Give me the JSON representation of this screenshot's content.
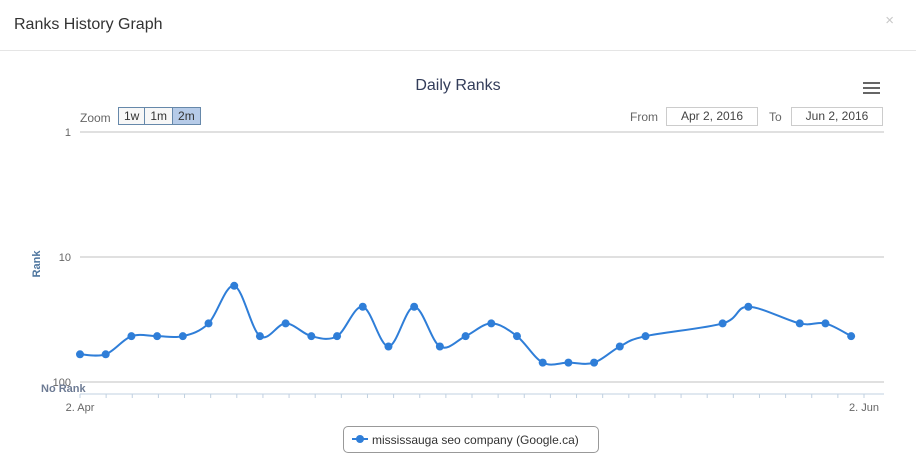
{
  "modal": {
    "title": "Ranks History Graph",
    "close_symbol": "×"
  },
  "chart_toolbar": {
    "zoom_label": "Zoom",
    "zoom_buttons": [
      "1w",
      "1m",
      "2m"
    ],
    "zoom_active": "2m",
    "from_label": "From",
    "from_value": "Apr 2, 2016",
    "to_label": "To",
    "to_value": "Jun 2, 2016",
    "menu_icon": "hamburger-menu-icon"
  },
  "chart_data": {
    "type": "line",
    "title": "Daily Ranks",
    "ylabel": "Rank",
    "xlabel": "",
    "y_scale": "log",
    "y_reversed": true,
    "ylim": [
      1,
      100
    ],
    "y_ticks": [
      {
        "value": 1,
        "label": "1"
      },
      {
        "value": 10,
        "label": "10"
      },
      {
        "value": 100,
        "label": "100"
      }
    ],
    "no_rank_label": "No Rank",
    "x_ticks": [
      {
        "date": "2016-04-02",
        "label": "2. Apr"
      },
      {
        "date": "2016-06-02",
        "label": "2. Jun"
      }
    ],
    "grid": true,
    "legend_position": "bottom-center",
    "series": [
      {
        "name": "mississauga seo company (Google.ca)",
        "color": "#2f7ed8",
        "points": [
          {
            "date": "2016-04-02",
            "rank": 60
          },
          {
            "date": "2016-04-04",
            "rank": 60
          },
          {
            "date": "2016-04-06",
            "rank": 43
          },
          {
            "date": "2016-04-08",
            "rank": 43
          },
          {
            "date": "2016-04-10",
            "rank": 43
          },
          {
            "date": "2016-04-12",
            "rank": 34
          },
          {
            "date": "2016-04-14",
            "rank": 17
          },
          {
            "date": "2016-04-16",
            "rank": 43
          },
          {
            "date": "2016-04-18",
            "rank": 34
          },
          {
            "date": "2016-04-20",
            "rank": 43
          },
          {
            "date": "2016-04-22",
            "rank": 43
          },
          {
            "date": "2016-04-24",
            "rank": 25
          },
          {
            "date": "2016-04-26",
            "rank": 52
          },
          {
            "date": "2016-04-28",
            "rank": 25
          },
          {
            "date": "2016-04-30",
            "rank": 52
          },
          {
            "date": "2016-05-02",
            "rank": 43
          },
          {
            "date": "2016-05-04",
            "rank": 34
          },
          {
            "date": "2016-05-06",
            "rank": 43
          },
          {
            "date": "2016-05-08",
            "rank": 70
          },
          {
            "date": "2016-05-10",
            "rank": 70
          },
          {
            "date": "2016-05-12",
            "rank": 70
          },
          {
            "date": "2016-05-14",
            "rank": 52
          },
          {
            "date": "2016-05-16",
            "rank": 43
          },
          {
            "date": "2016-05-22",
            "rank": 34
          },
          {
            "date": "2016-05-24",
            "rank": 25
          },
          {
            "date": "2016-05-28",
            "rank": 34
          },
          {
            "date": "2016-05-30",
            "rank": 34
          },
          {
            "date": "2016-06-01",
            "rank": 43
          }
        ]
      }
    ]
  }
}
